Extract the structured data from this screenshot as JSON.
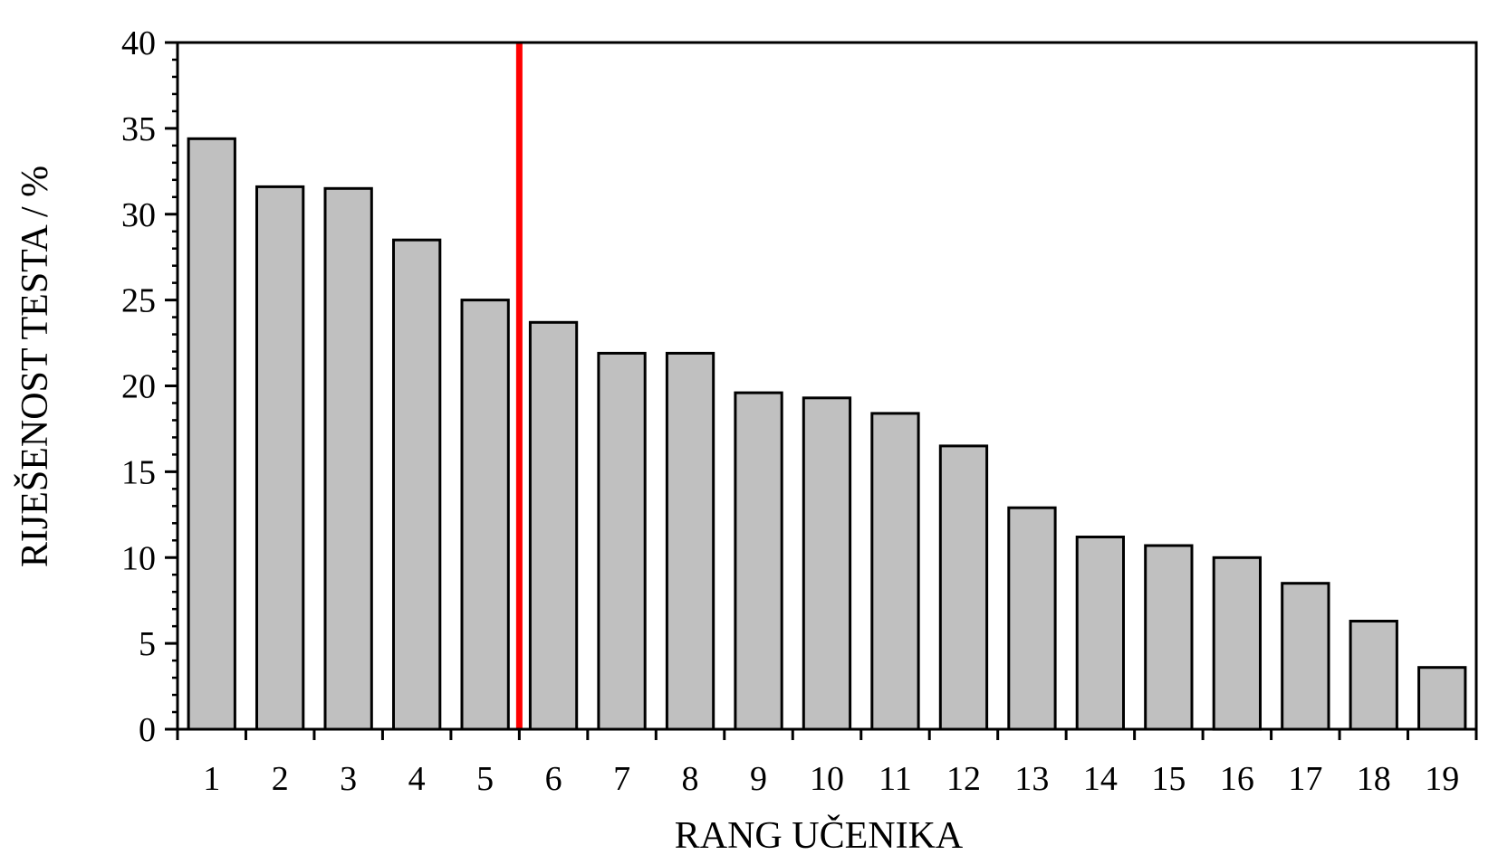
{
  "chart_data": {
    "type": "bar",
    "categories": [
      "1",
      "2",
      "3",
      "4",
      "5",
      "6",
      "7",
      "8",
      "9",
      "10",
      "11",
      "12",
      "13",
      "14",
      "15",
      "16",
      "17",
      "18",
      "19"
    ],
    "values": [
      34.4,
      31.6,
      31.5,
      28.5,
      25.0,
      23.7,
      21.9,
      21.9,
      19.6,
      19.3,
      18.4,
      16.5,
      12.9,
      11.2,
      10.7,
      10.0,
      8.5,
      6.3,
      3.6
    ],
    "title": "",
    "xlabel": "RANG UČENIKA",
    "ylabel": "RIJEŠENOST TESTA / %",
    "ylim": [
      0,
      40
    ],
    "yticks": [
      0,
      5,
      10,
      15,
      20,
      25,
      30,
      35,
      40
    ],
    "y_minor_step": 1,
    "grid": false,
    "bar_color": "#c0c0c0",
    "bar_edge_color": "#000000",
    "cutoff_line": {
      "x_between": [
        5,
        6
      ],
      "color": "#ff0000"
    }
  }
}
